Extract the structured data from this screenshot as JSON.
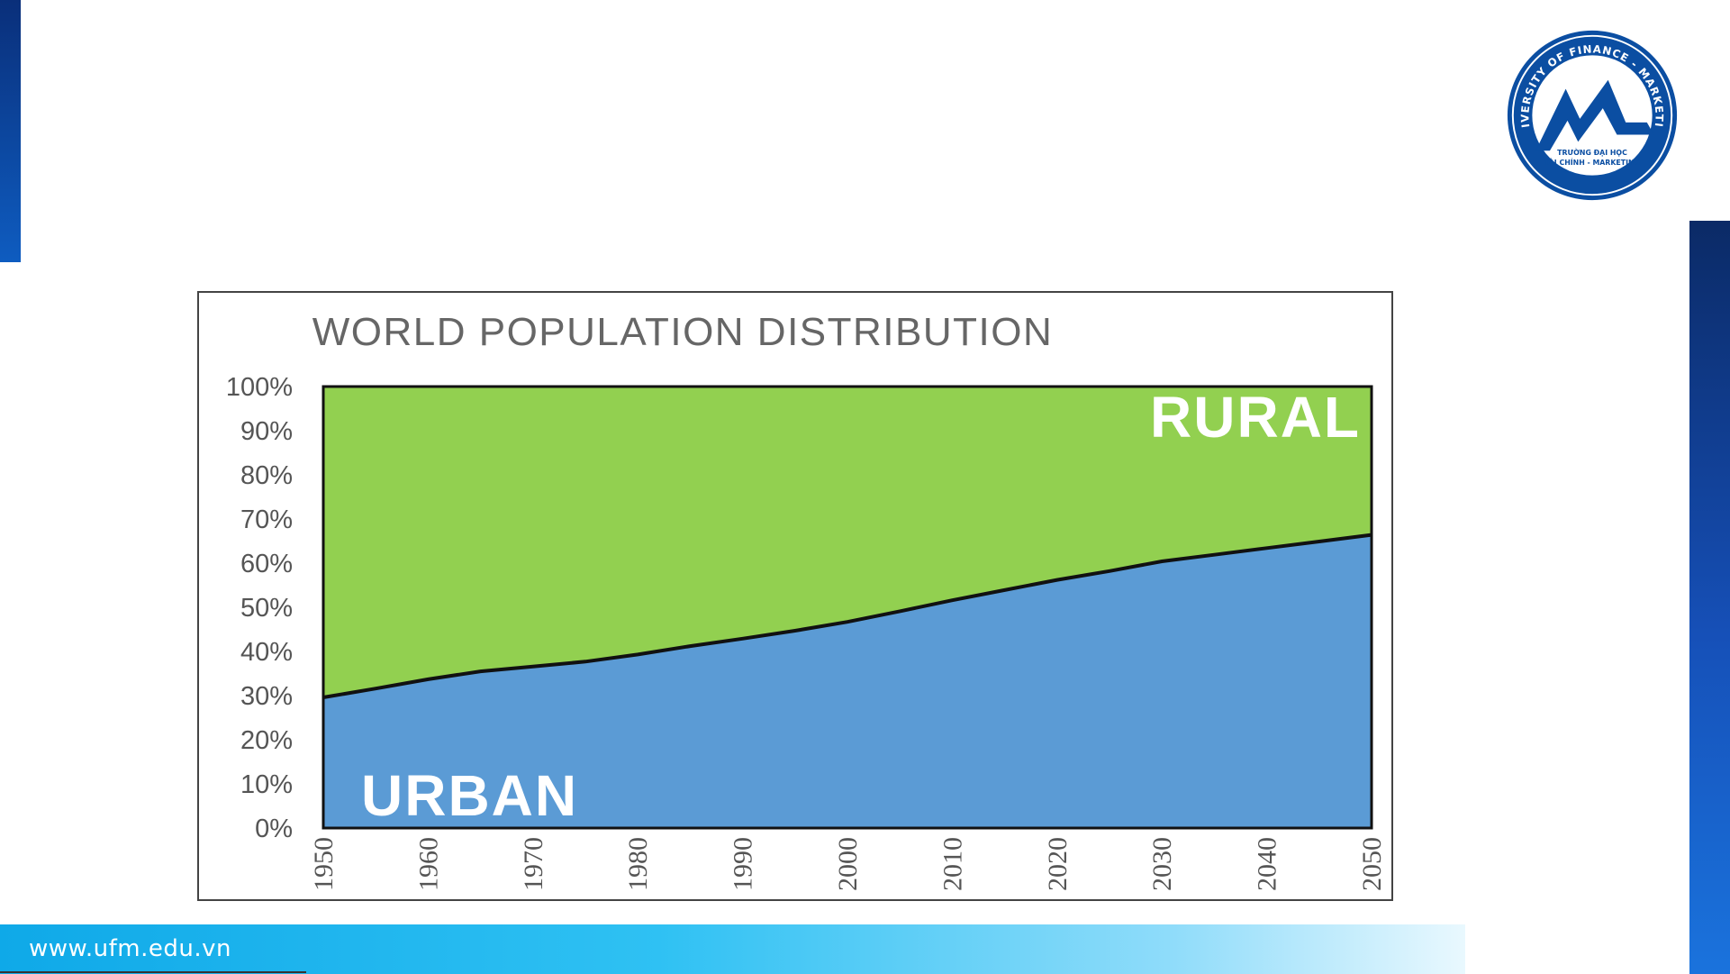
{
  "footer": {
    "url": "www.ufm.edu.vn"
  },
  "logo": {
    "ring_text": "UNIVERSITY OF FINANCE - MARKETING",
    "line1": "TRƯỜNG ĐẠI HỌC",
    "line2": "TÀI CHÍNH - MARKETING"
  },
  "colors": {
    "urban": "#5b9bd5",
    "rural": "#92d050",
    "brand_blue": "#0b4ea2"
  },
  "chart_data": {
    "type": "area",
    "title": "WORLD POPULATION DISTRIBUTION",
    "x": [
      1950,
      1955,
      1960,
      1965,
      1970,
      1975,
      1980,
      1985,
      1990,
      1995,
      2000,
      2005,
      2010,
      2015,
      2020,
      2025,
      2030,
      2035,
      2040,
      2045,
      2050
    ],
    "series": [
      {
        "name": "URBAN",
        "values": [
          29.6,
          31.6,
          33.7,
          35.5,
          36.6,
          37.7,
          39.3,
          41.2,
          42.9,
          44.7,
          46.7,
          49.1,
          51.6,
          53.9,
          56.2,
          58.2,
          60.4,
          61.9,
          63.4,
          64.9,
          66.4
        ]
      },
      {
        "name": "RURAL",
        "values": [
          70.4,
          68.4,
          66.3,
          64.5,
          63.4,
          62.3,
          60.7,
          58.8,
          57.1,
          55.3,
          53.3,
          50.9,
          48.4,
          46.1,
          43.8,
          41.8,
          39.6,
          38.1,
          36.6,
          35.1,
          33.6
        ]
      }
    ],
    "stacked": true,
    "ylim": [
      0,
      100
    ],
    "xlim": [
      1950,
      2050
    ],
    "yticks": [
      "0%",
      "10%",
      "20%",
      "30%",
      "40%",
      "50%",
      "60%",
      "70%",
      "80%",
      "90%",
      "100%"
    ],
    "xticks": [
      "1950",
      "1960",
      "1970",
      "1980",
      "1990",
      "2000",
      "2010",
      "2020",
      "2030",
      "2040",
      "2050"
    ],
    "legend": "in-plot labels"
  }
}
